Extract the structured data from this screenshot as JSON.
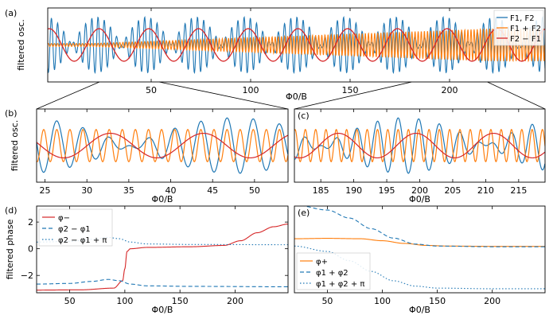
{
  "colors": {
    "blue": "#1f77b4",
    "orange": "#ff7f0e",
    "red": "#d62728"
  },
  "chart_data": [
    {
      "id": "a",
      "panel_label": "(a)",
      "type": "line",
      "ylabel": "filtered osc.",
      "xlabel": "Φ0/B",
      "xlim": [
        -2,
        248
      ],
      "ylim": [
        -1.25,
        1.25
      ],
      "xticks": [
        50,
        100,
        150,
        200
      ],
      "legend": [
        "F1, F2",
        "F1 + F2",
        "F2 − F1"
      ],
      "series": [
        {
          "name": "F1, F2",
          "color": "#1f77b4",
          "f1": 0.3,
          "f2": 0.34,
          "amp": 0.95
        },
        {
          "name": "F1 + F2",
          "color": "#ff7f0e",
          "freq": 0.64,
          "amp_start": 0.05,
          "amp_end": 0.55
        },
        {
          "name": "F2 − F1",
          "color": "#d62728",
          "freq": 0.04,
          "amp": 0.55
        }
      ]
    },
    {
      "id": "b",
      "panel_label": "(b)",
      "type": "line",
      "ylabel": "filtered osc.",
      "xlabel": "Φ0/B",
      "xlim": [
        24,
        54
      ],
      "ylim": [
        -1.25,
        1.25
      ],
      "xticks": [
        25,
        30,
        35,
        40,
        45,
        50
      ]
    },
    {
      "id": "c",
      "panel_label": "(c)",
      "type": "line",
      "xlabel": "Φ0/B",
      "xlim": [
        181,
        219
      ],
      "ylim": [
        -1.25,
        1.25
      ],
      "xticks": [
        185,
        190,
        195,
        200,
        205,
        210,
        215
      ]
    },
    {
      "id": "d",
      "panel_label": "(d)",
      "type": "line",
      "ylabel": "filtered phase",
      "xlabel": "Φ0/B",
      "xlim": [
        20,
        248
      ],
      "ylim": [
        -3.3,
        3.2
      ],
      "xticks": [
        50,
        100,
        150,
        200
      ],
      "yticks": [
        -2,
        0,
        2
      ],
      "legend": [
        "φ−",
        "φ2 − φ1",
        "φ2 − φ1 + π"
      ],
      "series": [
        {
          "name": "φ−",
          "color": "#d62728",
          "style": "solid",
          "points": [
            [
              20,
              -3.1
            ],
            [
              60,
              -3.08
            ],
            [
              90,
              -2.95
            ],
            [
              98,
              -2.4
            ],
            [
              100,
              -1.5
            ],
            [
              102,
              -0.2
            ],
            [
              105,
              0.0
            ],
            [
              120,
              0.1
            ],
            [
              160,
              0.15
            ],
            [
              190,
              0.25
            ],
            [
              205,
              0.6
            ],
            [
              220,
              1.2
            ],
            [
              235,
              1.65
            ],
            [
              248,
              1.85
            ]
          ]
        },
        {
          "name": "φ2 − φ1",
          "color": "#1f77b4",
          "style": "dashed",
          "points": [
            [
              20,
              -2.65
            ],
            [
              50,
              -2.6
            ],
            [
              70,
              -2.45
            ],
            [
              85,
              -2.3
            ],
            [
              95,
              -2.4
            ],
            [
              105,
              -2.65
            ],
            [
              120,
              -2.78
            ],
            [
              160,
              -2.82
            ],
            [
              248,
              -2.85
            ]
          ]
        },
        {
          "name": "φ2 − φ1 + π",
          "color": "#1f77b4",
          "style": "dotted",
          "points": [
            [
              20,
              0.5
            ],
            [
              50,
              0.55
            ],
            [
              70,
              0.7
            ],
            [
              85,
              0.85
            ],
            [
              95,
              0.75
            ],
            [
              105,
              0.5
            ],
            [
              120,
              0.36
            ],
            [
              160,
              0.32
            ],
            [
              248,
              0.3
            ]
          ]
        }
      ]
    },
    {
      "id": "e",
      "panel_label": "(e)",
      "type": "line",
      "xlabel": "Φ0/B",
      "xlim": [
        20,
        248
      ],
      "ylim": [
        -3.3,
        3.2
      ],
      "xticks": [
        50,
        100,
        150,
        200
      ],
      "legend": [
        "φ+",
        "φ1 + φ2",
        "φ1 + φ2 + π"
      ],
      "series": [
        {
          "name": "φ+",
          "color": "#ff7f0e",
          "style": "solid",
          "points": [
            [
              20,
              0.75
            ],
            [
              50,
              0.78
            ],
            [
              80,
              0.75
            ],
            [
              100,
              0.6
            ],
            [
              120,
              0.4
            ],
            [
              140,
              0.25
            ],
            [
              160,
              0.2
            ],
            [
              200,
              0.18
            ],
            [
              248,
              0.18
            ]
          ]
        },
        {
          "name": "φ1 + φ2",
          "color": "#1f77b4",
          "style": "dashed",
          "points": [
            [
              20,
              3.3
            ],
            [
              50,
              2.9
            ],
            [
              70,
              2.3
            ],
            [
              90,
              1.5
            ],
            [
              110,
              0.8
            ],
            [
              130,
              0.35
            ],
            [
              150,
              0.2
            ],
            [
              200,
              0.15
            ],
            [
              248,
              0.15
            ]
          ]
        },
        {
          "name": "φ1 + φ2 + π",
          "color": "#1f77b4",
          "style": "dotted",
          "points": [
            [
              20,
              0.2
            ],
            [
              50,
              -0.2
            ],
            [
              70,
              -0.9
            ],
            [
              90,
              -1.7
            ],
            [
              110,
              -2.4
            ],
            [
              130,
              -2.8
            ],
            [
              150,
              -2.95
            ],
            [
              200,
              -3.0
            ],
            [
              248,
              -3.0
            ]
          ]
        }
      ]
    }
  ]
}
